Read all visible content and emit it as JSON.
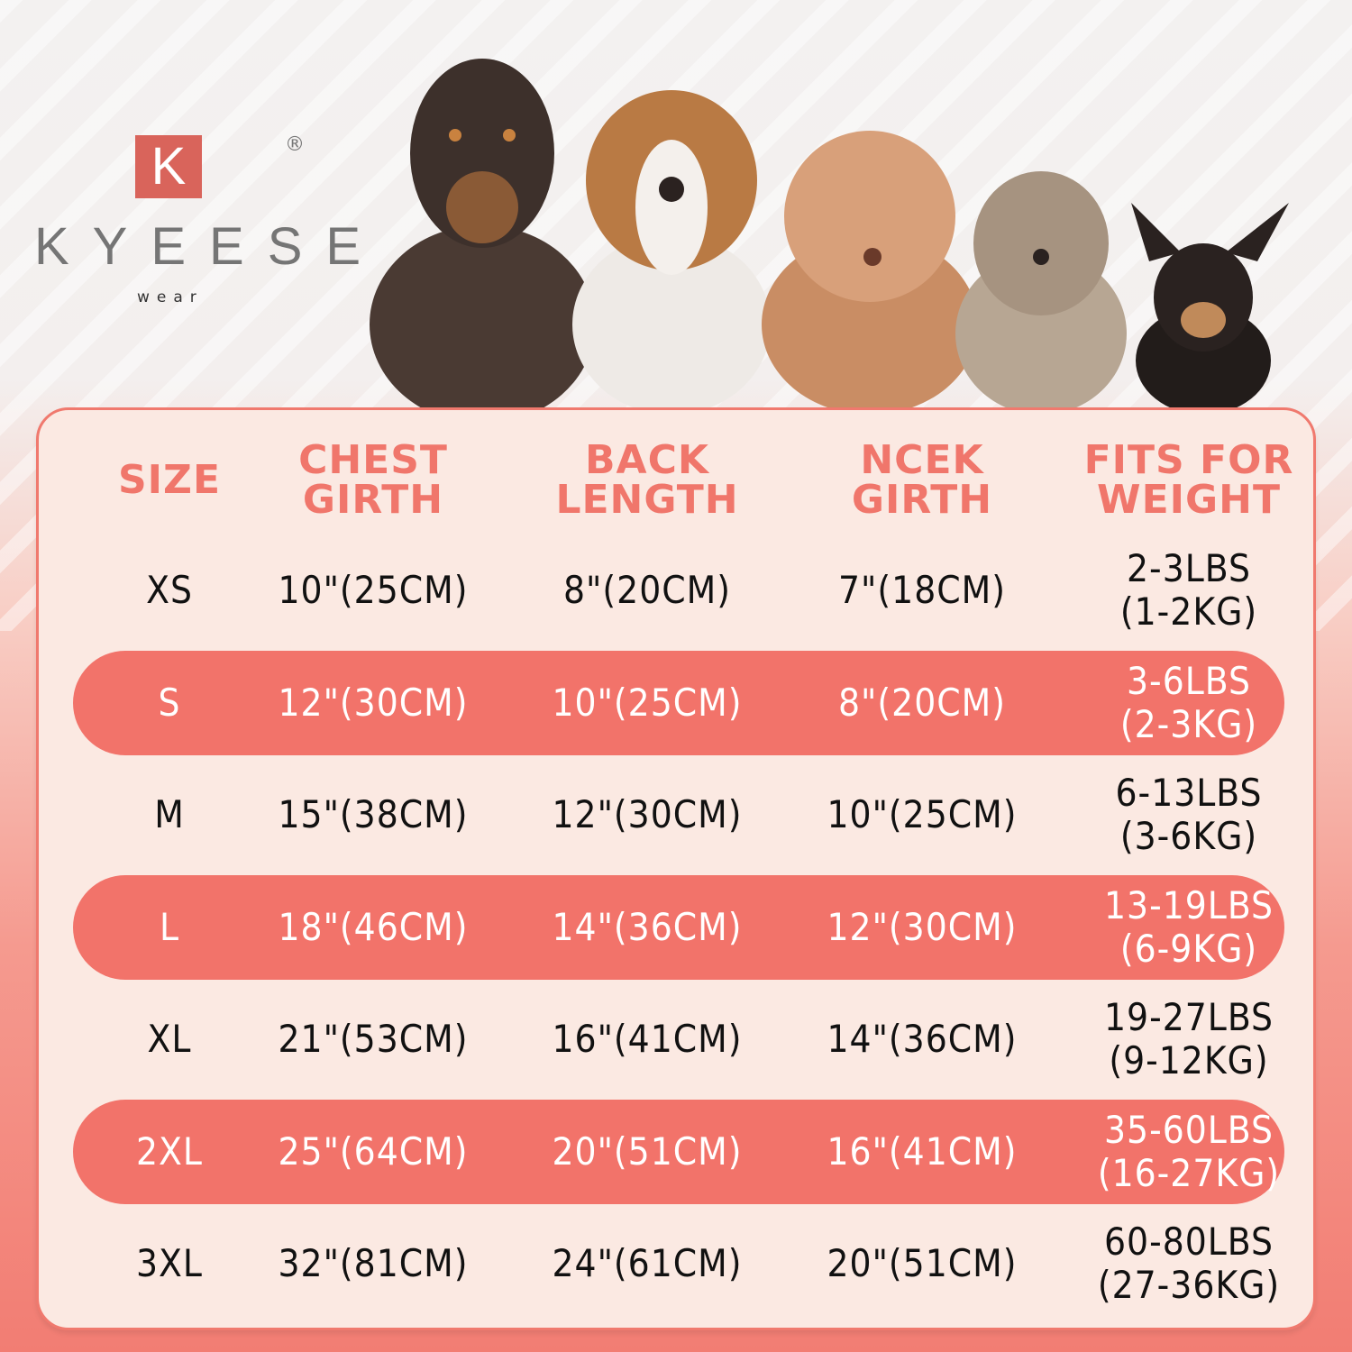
{
  "brand": {
    "mark": "K",
    "name": "KYEESE",
    "sub": "wear",
    "registered": "®",
    "accent": "#d9645b"
  },
  "colors": {
    "header_text": "#f0766b",
    "highlight_row": "#f2736a",
    "card": "#fbe9e2"
  },
  "table": {
    "headers": [
      [
        "SIZE"
      ],
      [
        "CHEST",
        "GIRTH"
      ],
      [
        "BACK",
        "LENGTH"
      ],
      [
        "NCEK",
        "GIRTH"
      ],
      [
        "FITS FOR",
        "WEIGHT"
      ]
    ],
    "rows": [
      {
        "size": "XS",
        "chest": "10\"(25CM)",
        "back": "8\"(20CM)",
        "neck": "7\"(18CM)",
        "weight": [
          "2-3LBS",
          "(1-2KG)"
        ],
        "highlight": false
      },
      {
        "size": "S",
        "chest": "12\"(30CM)",
        "back": "10\"(25CM)",
        "neck": "8\"(20CM)",
        "weight": [
          "3-6LBS",
          "(2-3KG)"
        ],
        "highlight": true
      },
      {
        "size": "M",
        "chest": "15\"(38CM)",
        "back": "12\"(30CM)",
        "neck": "10\"(25CM)",
        "weight": [
          "6-13LBS",
          "(3-6KG)"
        ],
        "highlight": false
      },
      {
        "size": "L",
        "chest": "18\"(46CM)",
        "back": "14\"(36CM)",
        "neck": "12\"(30CM)",
        "weight": [
          "13-19LBS",
          "(6-9KG)"
        ],
        "highlight": true
      },
      {
        "size": "XL",
        "chest": "21\"(53CM)",
        "back": "16\"(41CM)",
        "neck": "14\"(36CM)",
        "weight": [
          "19-27LBS",
          "(9-12KG)"
        ],
        "highlight": false
      },
      {
        "size": "2XL",
        "chest": "25\"(64CM)",
        "back": "20\"(51CM)",
        "neck": "16\"(41CM)",
        "weight": [
          "35-60LBS",
          "(16-27KG)"
        ],
        "highlight": true
      },
      {
        "size": "3XL",
        "chest": "32\"(81CM)",
        "back": "24\"(61CM)",
        "neck": "20\"(51CM)",
        "weight": [
          "60-80LBS",
          "(27-36KG)"
        ],
        "highlight": false
      }
    ]
  }
}
